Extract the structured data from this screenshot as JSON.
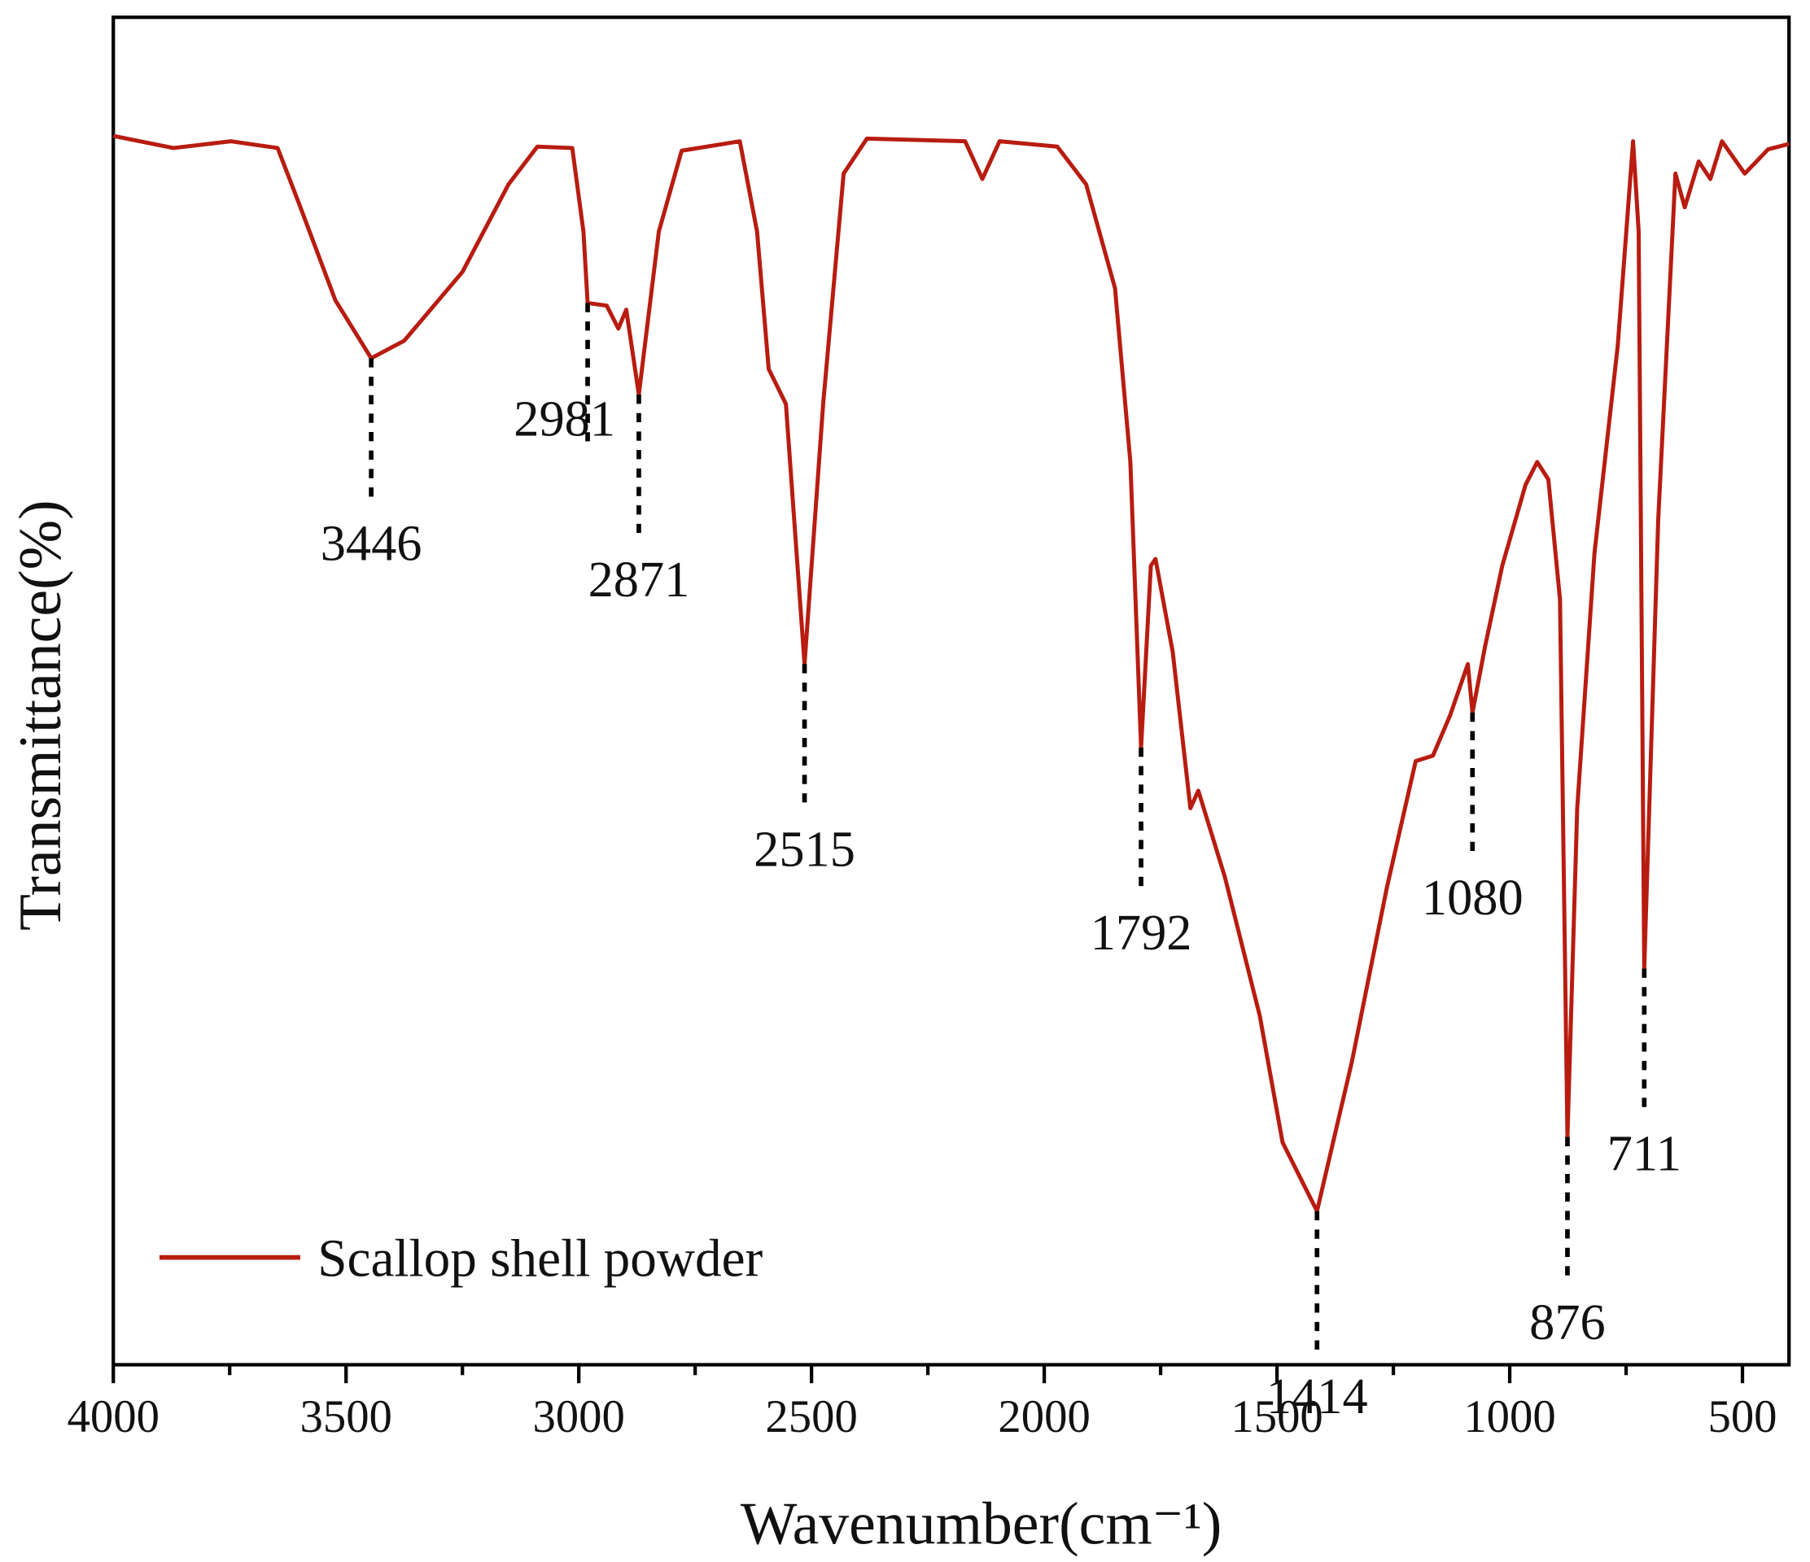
{
  "chart_data": {
    "type": "line",
    "xlabel": "Wavenumber(cm⁻¹)",
    "ylabel": "Transmittance(%)",
    "xlim": [
      4000,
      400
    ],
    "ylim": [
      0,
      100
    ],
    "xticks": [
      4000,
      3500,
      3000,
      2500,
      2000,
      1500,
      1000,
      500
    ],
    "xminor_ticks": [
      3750,
      3250,
      2750,
      2250,
      1750,
      1250,
      750
    ],
    "legend": "lower left",
    "x": [
      4000,
      3871,
      3747,
      3647,
      3598,
      3523,
      3446,
      3375,
      3250,
      3151,
      3089,
      3014,
      2990,
      2981,
      2940,
      2915,
      2898,
      2871,
      2828,
      2779,
      2654,
      2617,
      2592,
      2555,
      2515,
      2475,
      2431,
      2381,
      2170,
      2133,
      2096,
      1972,
      1910,
      1848,
      1815,
      1792,
      1771,
      1761,
      1724,
      1686,
      1669,
      1612,
      1537,
      1488,
      1414,
      1339,
      1264,
      1202,
      1165,
      1128,
      1090,
      1080,
      1053,
      1016,
      966,
      941,
      917,
      892,
      876,
      855,
      818,
      768,
      735,
      723,
      711,
      681,
      644,
      624,
      594,
      569,
      544,
      495,
      445,
      400
    ],
    "series": [
      {
        "name": "Scallop shell powder",
        "color": "#b81c10",
        "values": [
          91.2,
          90.3,
          90.8,
          90.3,
          85.9,
          79.0,
          74.7,
          76.0,
          81.1,
          87.6,
          90.4,
          90.3,
          84.1,
          78.8,
          78.6,
          76.9,
          78.3,
          72.0,
          84.1,
          90.1,
          90.8,
          84.1,
          73.9,
          71.3,
          52.0,
          71.3,
          88.4,
          91.0,
          90.8,
          88.0,
          90.8,
          90.4,
          87.6,
          79.9,
          67.0,
          45.8,
          59.3,
          59.8,
          52.9,
          41.3,
          42.6,
          36.2,
          25.9,
          16.5,
          11.4,
          22.5,
          35.4,
          44.8,
          45.2,
          48.2,
          52.0,
          48.4,
          53.3,
          59.3,
          65.3,
          67.0,
          65.7,
          56.8,
          16.9,
          41.3,
          60.2,
          75.6,
          90.8,
          84.1,
          29.4,
          62.7,
          88.4,
          85.9,
          89.3,
          88.0,
          90.8,
          88.4,
          90.2,
          90.6
        ]
      }
    ],
    "annotations": [
      {
        "text": "3446",
        "x": 3446,
        "y": 74.7
      },
      {
        "text": "2981",
        "x": 2981,
        "y": 78.8
      },
      {
        "text": "2871",
        "x": 2871,
        "y": 72.0
      },
      {
        "text": "2515",
        "x": 2515,
        "y": 52.0
      },
      {
        "text": "1792",
        "x": 1792,
        "y": 45.8
      },
      {
        "text": "1414",
        "x": 1414,
        "y": 11.4
      },
      {
        "text": "1080",
        "x": 1080,
        "y": 48.4
      },
      {
        "text": "876",
        "x": 876,
        "y": 16.9
      },
      {
        "text": "711",
        "x": 711,
        "y": 29.4
      }
    ]
  }
}
